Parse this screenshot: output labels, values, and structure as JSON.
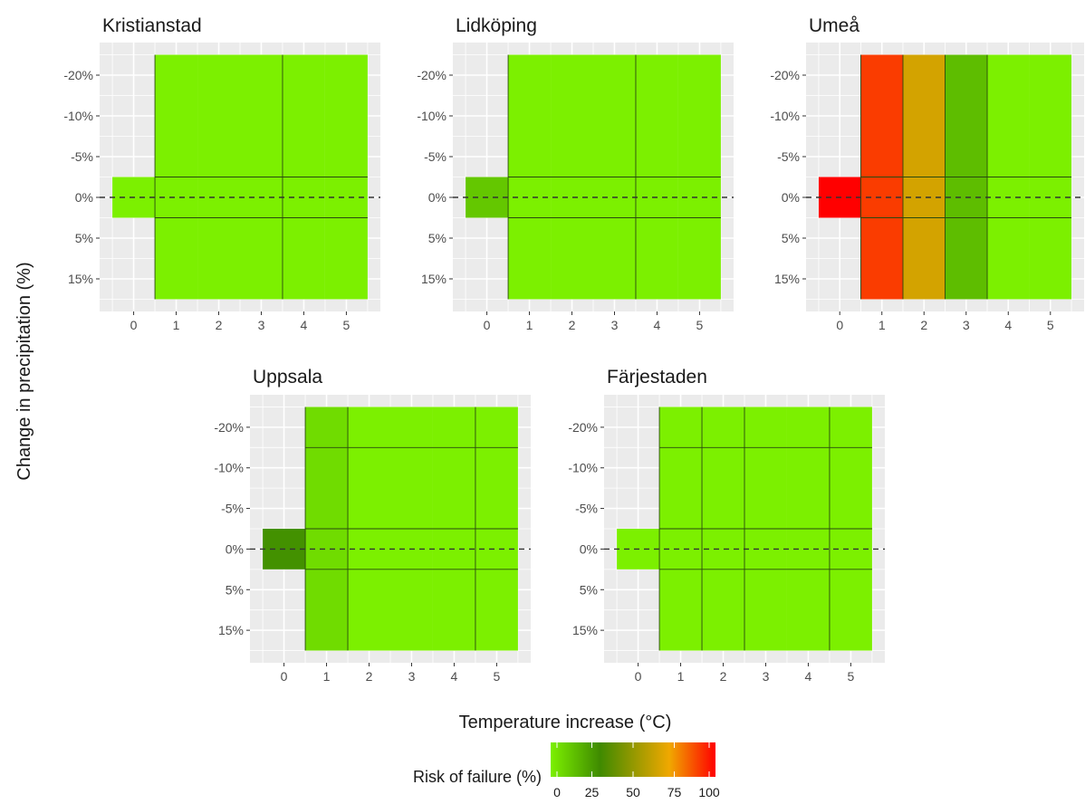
{
  "chart_data": {
    "type": "heatmap",
    "xlabel": "Temperature increase (°C)",
    "ylabel": "Change in precipitation (%)",
    "x_ticks": [
      "0",
      "1",
      "2",
      "3",
      "4",
      "5"
    ],
    "y_ticks": [
      "-20%",
      "-10%",
      "-5%",
      "0%",
      "5%",
      "15%"
    ],
    "reference_line": "0%",
    "grid": true,
    "legend": {
      "title": "Risk of failure (%)",
      "ticks": [
        "0",
        "25",
        "50",
        "75",
        "100"
      ],
      "range": [
        0,
        100
      ],
      "position": "bottom",
      "colors": [
        "#7cf000",
        "#3f8a00",
        "#f0a800",
        "#ff0000"
      ]
    },
    "panels": [
      {
        "title": "Kristianstad",
        "baseline_risk": 0,
        "column_risk": [
          0,
          0,
          0,
          0,
          0
        ],
        "cell_boundaries_x": [
          3.5
        ],
        "cell_boundaries_y": [
          "0%",
          "5%"
        ]
      },
      {
        "title": "Lidköping",
        "baseline_risk": 12,
        "column_risk": [
          0,
          0,
          0,
          0,
          0
        ],
        "cell_boundaries_x": [
          3.5
        ],
        "cell_boundaries_y": [
          "0%",
          "5%"
        ]
      },
      {
        "title": "Umeå",
        "baseline_risk": 100,
        "column_risk": [
          90,
          65,
          15,
          0,
          0
        ],
        "cell_boundaries_x": [
          1.5,
          2.5,
          3.5
        ],
        "cell_boundaries_y": [
          "0%",
          "5%"
        ]
      },
      {
        "title": "Uppsala",
        "baseline_risk": 28,
        "column_risk": [
          6,
          0,
          0,
          0,
          0
        ],
        "cell_boundaries_x": [
          1.5,
          4.5
        ],
        "cell_boundaries_y": [
          "-10%",
          "0%",
          "5%"
        ]
      },
      {
        "title": "Färjestaden",
        "baseline_risk": 0,
        "column_risk": [
          0,
          0,
          0,
          0,
          0
        ],
        "cell_boundaries_x": [
          1.5,
          2.5,
          4.5
        ],
        "cell_boundaries_y": [
          "-10%",
          "0%",
          "5%"
        ]
      }
    ]
  }
}
